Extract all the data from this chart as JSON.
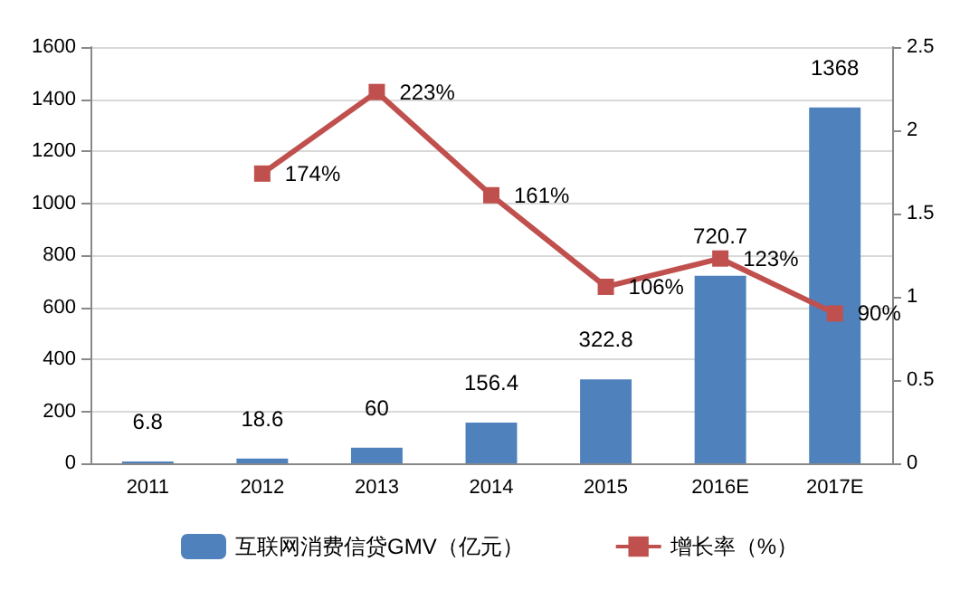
{
  "chart_data": {
    "type": "bar",
    "categories": [
      "2011",
      "2012",
      "2013",
      "2014",
      "2015",
      "2016E",
      "2017E"
    ],
    "series": [
      {
        "name": "互联网消费信贷GMV（亿元）",
        "color": "#4f81bd",
        "values": [
          6.8,
          18.6,
          60,
          156.4,
          322.8,
          720.7,
          1368
        ],
        "value_labels": [
          "6.8",
          "18.6",
          "60",
          "156.4",
          "322.8",
          "720.7",
          "1368"
        ]
      },
      {
        "name": "增长率（%）",
        "type": "line",
        "axis": "y2",
        "color": "#c0504d",
        "values": [
          null,
          1.74,
          2.23,
          1.61,
          1.06,
          1.23,
          0.9
        ],
        "value_labels": [
          null,
          "174%",
          "223%",
          "161%",
          "106%",
          "123%",
          "90%"
        ]
      }
    ],
    "ylim": [
      0,
      1600
    ],
    "yticks": [
      0,
      200,
      400,
      600,
      800,
      1000,
      1200,
      1400,
      1600
    ],
    "y2lim": [
      0,
      2.5
    ],
    "y2ticks": [
      0,
      0.5,
      1,
      1.5,
      2,
      2.5
    ],
    "grid": "y",
    "legend": "bottom",
    "marker": "square",
    "line_style": "solid"
  }
}
